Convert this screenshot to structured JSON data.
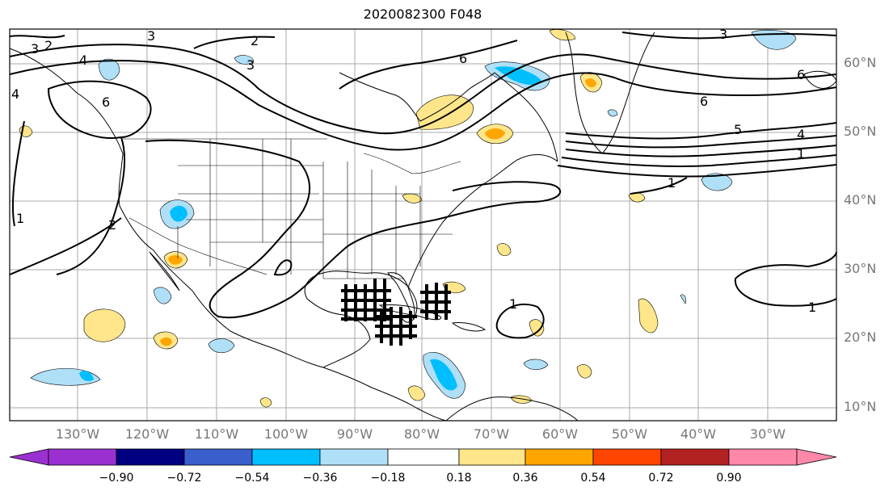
{
  "title": "2020082300 F048",
  "lon_labels": [
    "130°W",
    "120°W",
    "110°W",
    "100°W",
    "90°W",
    "80°W",
    "70°W",
    "60°W",
    "50°W",
    "40°W",
    "30°W"
  ],
  "lat_labels": [
    "60°N",
    "50°N",
    "40°N",
    "30°N",
    "20°N",
    "10°N"
  ],
  "colorbar": {
    "ticks": [
      "−0.90",
      "−0.72",
      "−0.54",
      "−0.36",
      "−0.18",
      "0.18",
      "0.36",
      "0.54",
      "0.72",
      "0.90"
    ],
    "colors": [
      "#9b30d0",
      "#000080",
      "#3a5fcd",
      "#00bfff",
      "#b0e0f8",
      "#ffffff",
      "#ffe68a",
      "#ffa500",
      "#ff4500",
      "#b22222",
      "#ff88aa"
    ]
  },
  "contour_labels": [
    {
      "text": "3"
    },
    {
      "text": "2"
    },
    {
      "text": "3"
    },
    {
      "text": "2"
    },
    {
      "text": "3"
    },
    {
      "text": "4"
    },
    {
      "text": "6"
    },
    {
      "text": "6"
    },
    {
      "text": "3"
    },
    {
      "text": "6"
    },
    {
      "text": "6"
    },
    {
      "text": "5"
    },
    {
      "text": "4"
    },
    {
      "text": "1"
    },
    {
      "text": "1"
    },
    {
      "text": "1"
    },
    {
      "text": "2"
    },
    {
      "text": "1"
    },
    {
      "text": "1"
    },
    {
      "text": "4"
    }
  ]
}
